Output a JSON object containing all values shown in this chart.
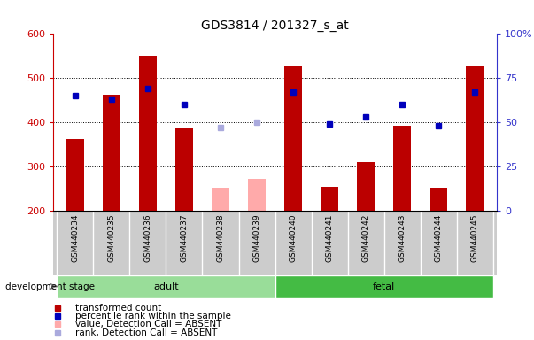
{
  "title": "GDS3814 / 201327_s_at",
  "samples": [
    "GSM440234",
    "GSM440235",
    "GSM440236",
    "GSM440237",
    "GSM440238",
    "GSM440239",
    "GSM440240",
    "GSM440241",
    "GSM440242",
    "GSM440243",
    "GSM440244",
    "GSM440245"
  ],
  "red_values": [
    363,
    462,
    551,
    388,
    null,
    null,
    528,
    255,
    310,
    393,
    253,
    528
  ],
  "blue_values": [
    65,
    63,
    69,
    60,
    null,
    null,
    67,
    49,
    53,
    60,
    48,
    67
  ],
  "pink_values": [
    null,
    null,
    null,
    null,
    253,
    272,
    null,
    null,
    null,
    null,
    null,
    null
  ],
  "lavender_values": [
    null,
    null,
    null,
    null,
    47,
    50,
    null,
    null,
    null,
    null,
    null,
    null
  ],
  "adult_samples": [
    0,
    1,
    2,
    3,
    4,
    5
  ],
  "fetal_samples": [
    6,
    7,
    8,
    9,
    10,
    11
  ],
  "ylim_left": [
    200,
    600
  ],
  "ylim_right": [
    0,
    100
  ],
  "yticks_left": [
    200,
    300,
    400,
    500,
    600
  ],
  "yticks_right": [
    0,
    25,
    50,
    75,
    100
  ],
  "ylabel_left_color": "#cc0000",
  "ylabel_right_color": "#3333cc",
  "bar_width": 0.5,
  "red_color": "#bb0000",
  "blue_color": "#0000bb",
  "pink_color": "#ffaaaa",
  "lavender_color": "#aaaadd",
  "adult_color": "#99dd99",
  "fetal_color": "#44bb44",
  "bg_color": "#cccccc",
  "plot_bg": "#ffffff",
  "legend_items": [
    {
      "label": "transformed count",
      "color": "#bb0000"
    },
    {
      "label": "percentile rank within the sample",
      "color": "#0000bb"
    },
    {
      "label": "value, Detection Call = ABSENT",
      "color": "#ffaaaa"
    },
    {
      "label": "rank, Detection Call = ABSENT",
      "color": "#aaaadd"
    }
  ]
}
